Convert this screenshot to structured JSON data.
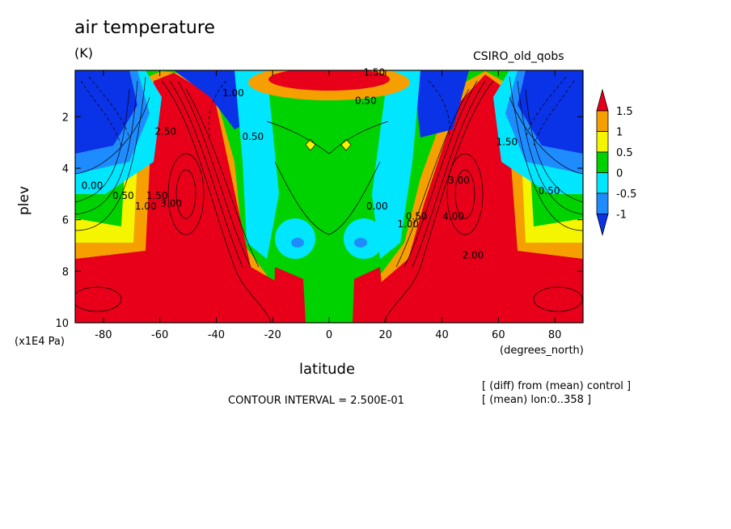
{
  "chart_data": {
    "type": "heatmap",
    "title": "air temperature",
    "units": "(K)",
    "model_label": "CSIRO_old_qobs",
    "xlabel": "latitude",
    "x_unit": "(degrees_north)",
    "ylabel": "plev",
    "y_unit": "(x1E4 Pa)",
    "xlim": [
      -90,
      90
    ],
    "ylim": [
      10,
      0.2
    ],
    "x_ticks": [
      "-80",
      "-60",
      "-40",
      "-20",
      "0",
      "20",
      "40",
      "60",
      "80"
    ],
    "x_tick_values": [
      -80,
      -60,
      -40,
      -20,
      0,
      20,
      40,
      60,
      80
    ],
    "y_ticks": [
      "2",
      "4",
      "6",
      "8",
      "10"
    ],
    "y_tick_values": [
      2,
      4,
      6,
      8,
      10
    ],
    "contour_interval": "CONTOUR INTERVAL = 2.500E-01",
    "notes": [
      "[ (diff) from (mean) control ]",
      "[ (mean) lon:0..358 ]"
    ],
    "colorbar": {
      "labels": [
        "1.5",
        "1",
        "0.5",
        "0",
        "-0.5",
        "-1"
      ],
      "levels": [
        1.5,
        1,
        0.5,
        0,
        -0.5,
        -1
      ],
      "colors": [
        "#e8001a",
        "#f5a000",
        "#f5f500",
        "#00d200",
        "#00e6ff",
        "#1e8cff",
        "#0a32e6"
      ]
    },
    "contour_labels": [
      {
        "text": "0.00",
        "lat": -84,
        "p": 4.8
      },
      {
        "text": "0.50",
        "lat": -73,
        "p": 5.2
      },
      {
        "text": "1.00",
        "lat": -65,
        "p": 5.6
      },
      {
        "text": "1.50",
        "lat": -61,
        "p": 5.2
      },
      {
        "text": "2.50",
        "lat": -58,
        "p": 2.7
      },
      {
        "text": "3.00",
        "lat": -56,
        "p": 5.5
      },
      {
        "text": "1.00",
        "lat": -34,
        "p": 1.2
      },
      {
        "text": "0.50",
        "lat": -27,
        "p": 2.9
      },
      {
        "text": "0.50",
        "lat": 13,
        "p": 1.5
      },
      {
        "text": "1.50",
        "lat": 16,
        "p": 0.4
      },
      {
        "text": "0.00",
        "lat": 17,
        "p": 5.6
      },
      {
        "text": "0.50",
        "lat": 31,
        "p": 6.0
      },
      {
        "text": "1.00",
        "lat": 28,
        "p": 6.3
      },
      {
        "text": "4.00",
        "lat": 44,
        "p": 6.0
      },
      {
        "text": "2.00",
        "lat": 51,
        "p": 7.5
      },
      {
        "text": "1.50",
        "lat": 63,
        "p": 3.1
      },
      {
        "text": "0.50",
        "lat": 78,
        "p": 5.0
      },
      {
        "text": "3.00",
        "lat": 46,
        "p": 4.6
      }
    ]
  }
}
